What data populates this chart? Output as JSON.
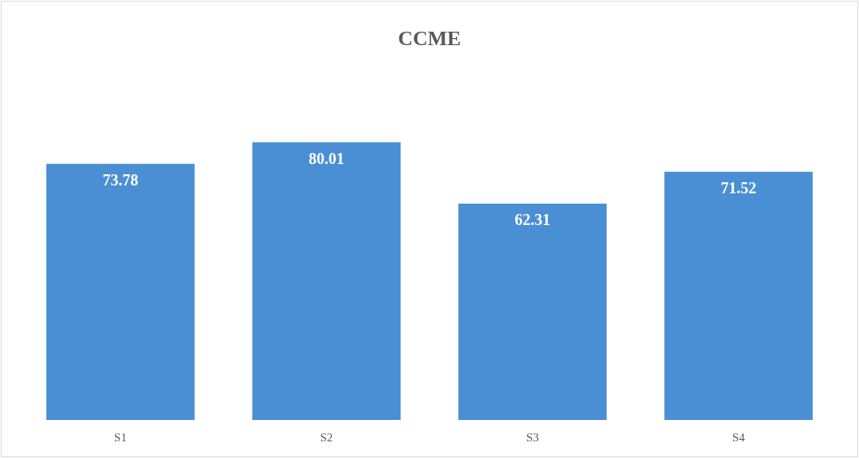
{
  "chart_data": {
    "type": "bar",
    "title": "CCME",
    "categories": [
      "S1",
      "S2",
      "S3",
      "S4"
    ],
    "values": [
      73.78,
      80.01,
      62.31,
      71.52
    ],
    "color": "#4a8fd3",
    "data_labels": true
  }
}
